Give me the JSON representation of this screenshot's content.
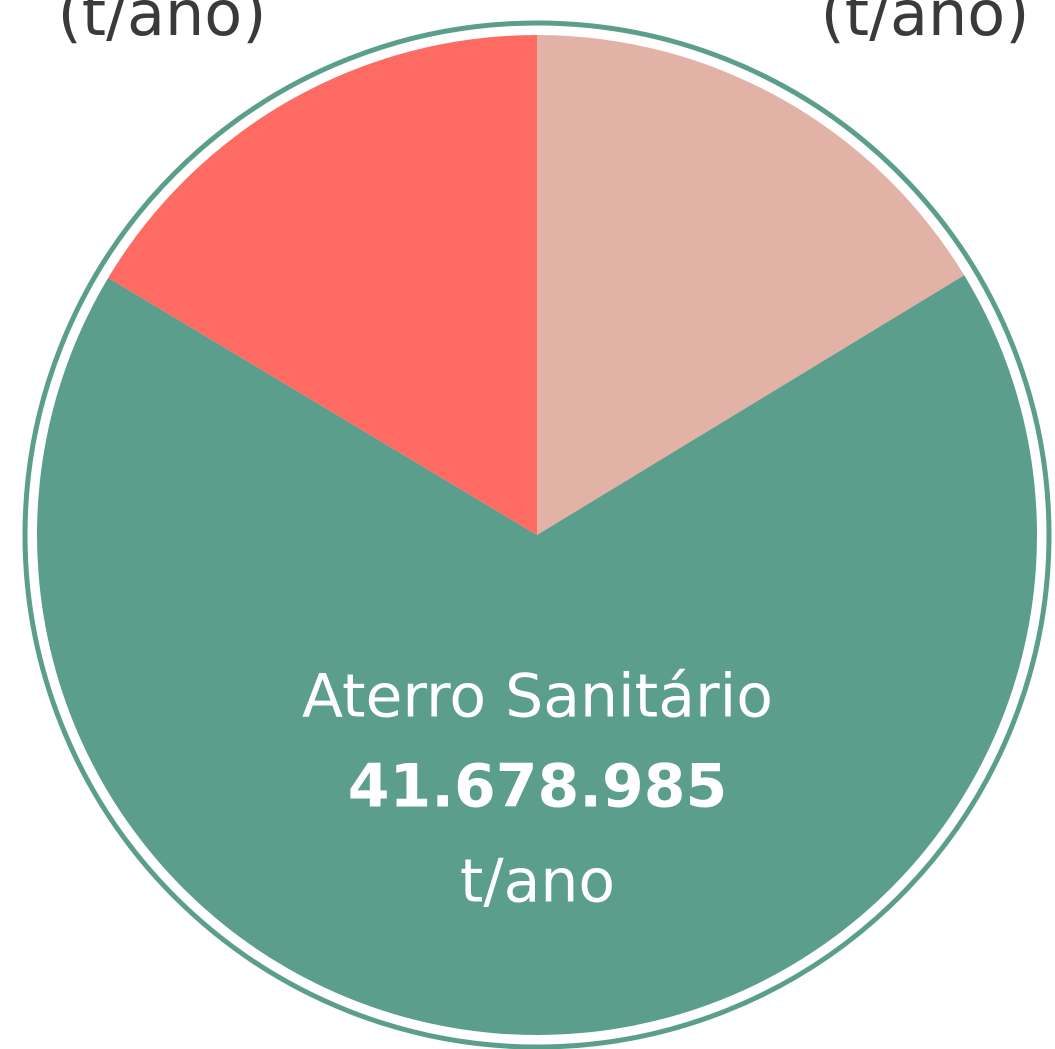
{
  "chart_data": {
    "type": "pie",
    "categories": [
      null,
      "Aterro Sanitário",
      null
    ],
    "values": [
      10100000,
      41678985,
      10160000
    ],
    "value_labels": [
      null,
      "41.678.985",
      null
    ],
    "colors": [
      "#e3b2a6",
      "#5b9e8c",
      "#fd6b63"
    ],
    "unit": "t/ano",
    "annotations": [
      "(t/ano)",
      "(t/ano)"
    ],
    "ring_color": "#5b9e8c"
  }
}
